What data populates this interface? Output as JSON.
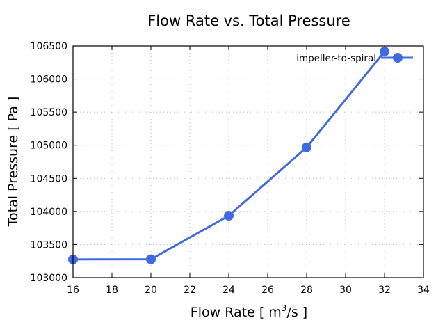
{
  "chart_data": {
    "type": "line",
    "title": "Flow Rate vs. Total Pressure",
    "xlabel": "Flow Rate [ m",
    "xlabel_superscript": "3",
    "xlabel_suffix": "/s ]",
    "ylabel": "Total Pressure [ Pa ]",
    "xlim": [
      16,
      34
    ],
    "ylim": [
      103000,
      106500
    ],
    "xticks": [
      16,
      18,
      20,
      22,
      24,
      26,
      28,
      30,
      32,
      34
    ],
    "yticks": [
      103000,
      103500,
      104000,
      104500,
      105000,
      105500,
      106000,
      106500
    ],
    "grid": true,
    "legend_position": "top-right",
    "series": [
      {
        "name": "impeller-to-spiral",
        "color": "#4169e1",
        "x": [
          16,
          20,
          24,
          28,
          32
        ],
        "y": [
          103275,
          103277,
          103935,
          104968,
          106415
        ]
      }
    ]
  }
}
